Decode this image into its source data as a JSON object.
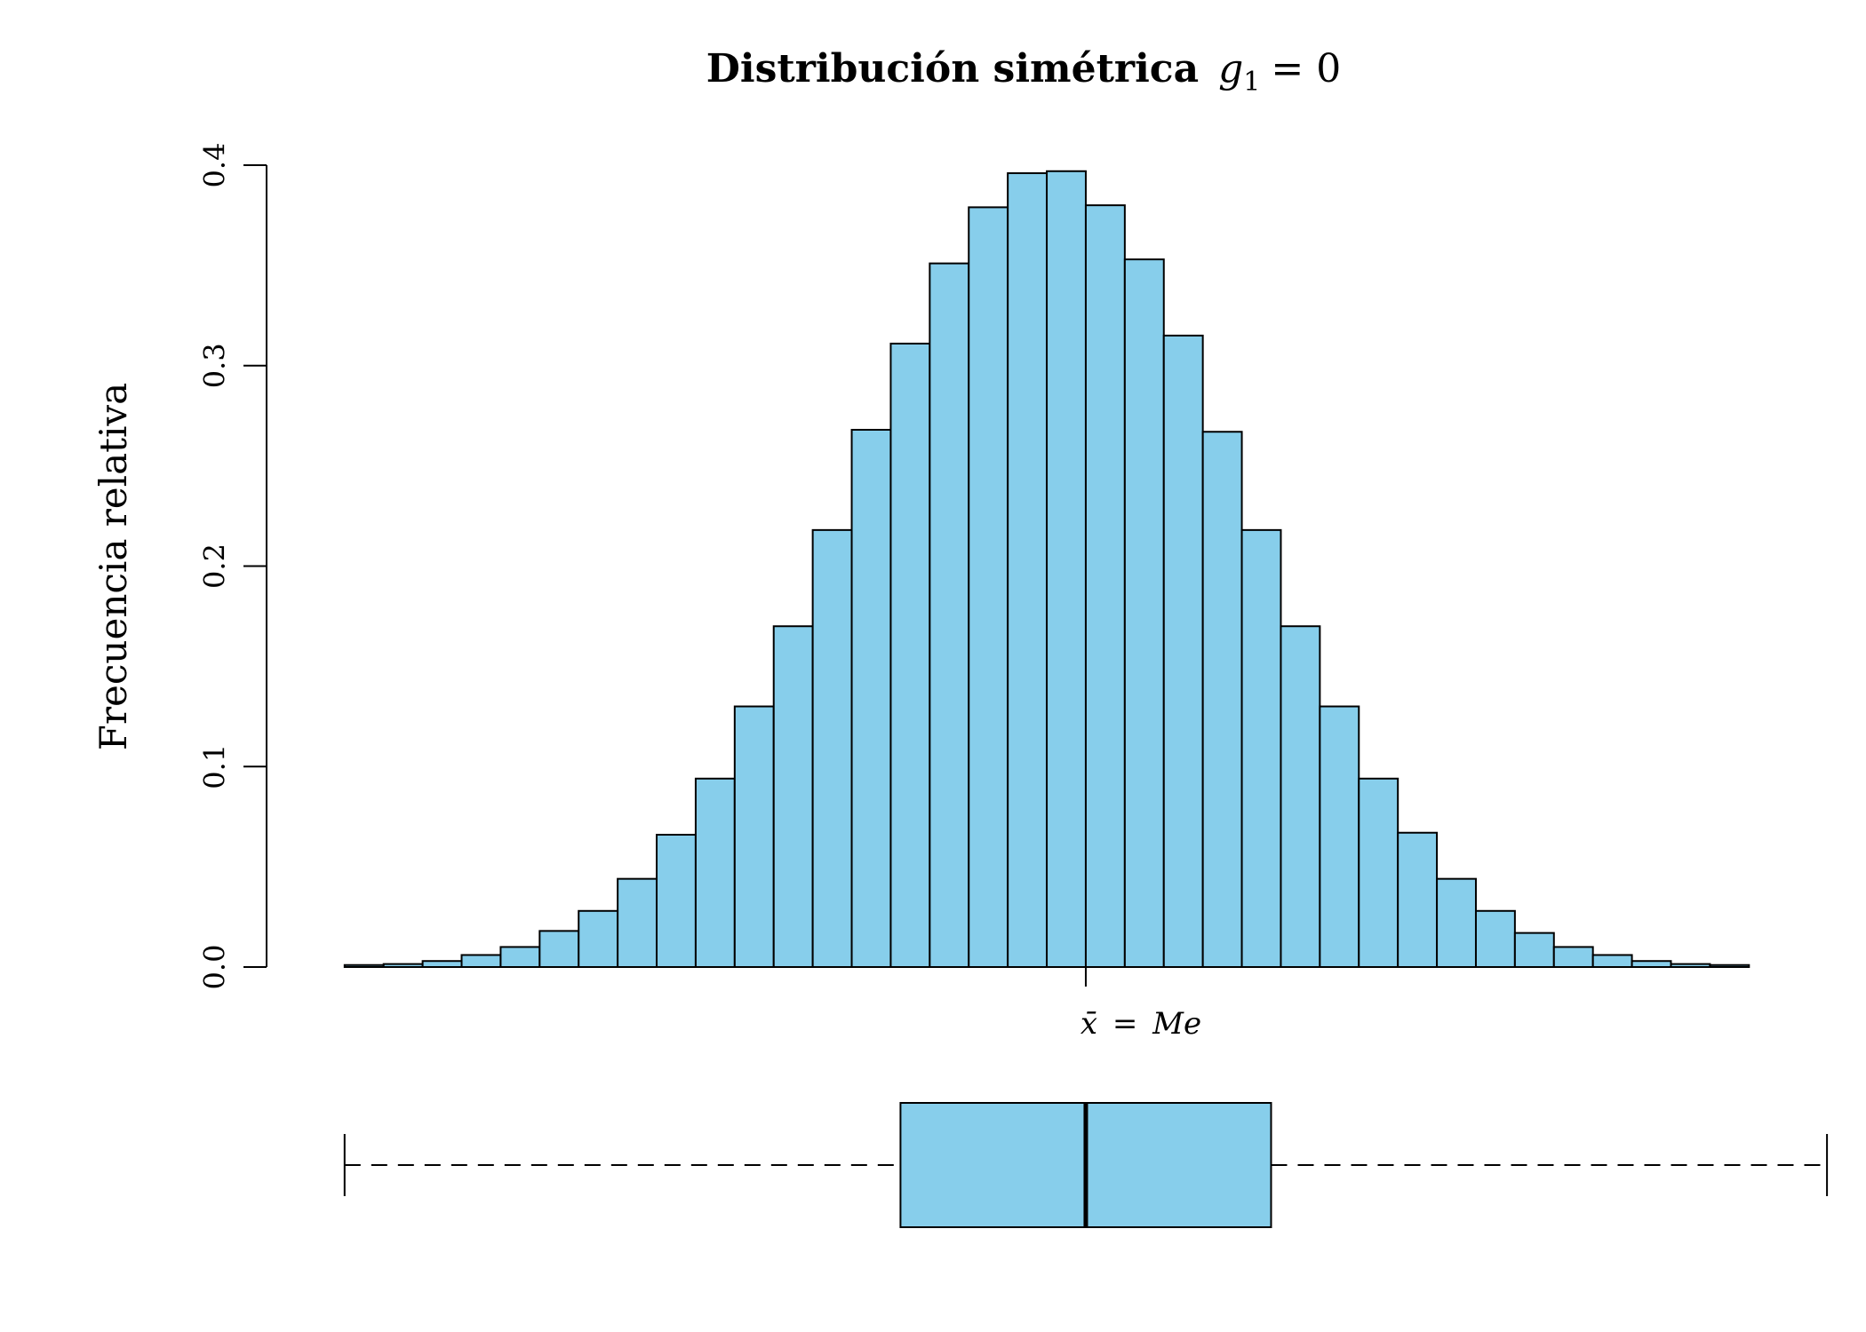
{
  "chart_data": {
    "type": "bar",
    "title_text": "Distribución simétrica",
    "title_math_var": "g",
    "title_math_sub": "1",
    "title_math_rest": "= 0",
    "xlabel_lhs": "x̄",
    "xlabel_rhs": "Me",
    "xlabel_eq": "=",
    "ylabel": "Frecuencia relativa",
    "ylim": [
      0,
      0.4
    ],
    "yticks": [
      "0.0",
      "0.1",
      "0.2",
      "0.3",
      "0.4"
    ],
    "ytick_values": [
      0,
      0.1,
      0.2,
      0.3,
      0.4
    ],
    "bar_color": "#87CEEB",
    "x_range": [
      -4.4,
      3.8
    ],
    "bin_width": 0.2,
    "bin_start": -4.0,
    "values": [
      0.001,
      0.0015,
      0.003,
      0.006,
      0.01,
      0.018,
      0.028,
      0.044,
      0.066,
      0.094,
      0.13,
      0.17,
      0.218,
      0.268,
      0.311,
      0.351,
      0.379,
      0.396,
      0.397,
      0.38,
      0.353,
      0.315,
      0.267,
      0.218,
      0.17,
      0.13,
      0.094,
      0.067,
      0.044,
      0.028,
      0.017,
      0.01,
      0.006,
      0.003,
      0.0015,
      0.001
    ],
    "marker_x": -0.2,
    "boxplot": {
      "min": -4.0,
      "q1": -1.15,
      "median": -0.2,
      "q3": 0.75,
      "max": 3.6,
      "color": "#87CEEB"
    }
  }
}
